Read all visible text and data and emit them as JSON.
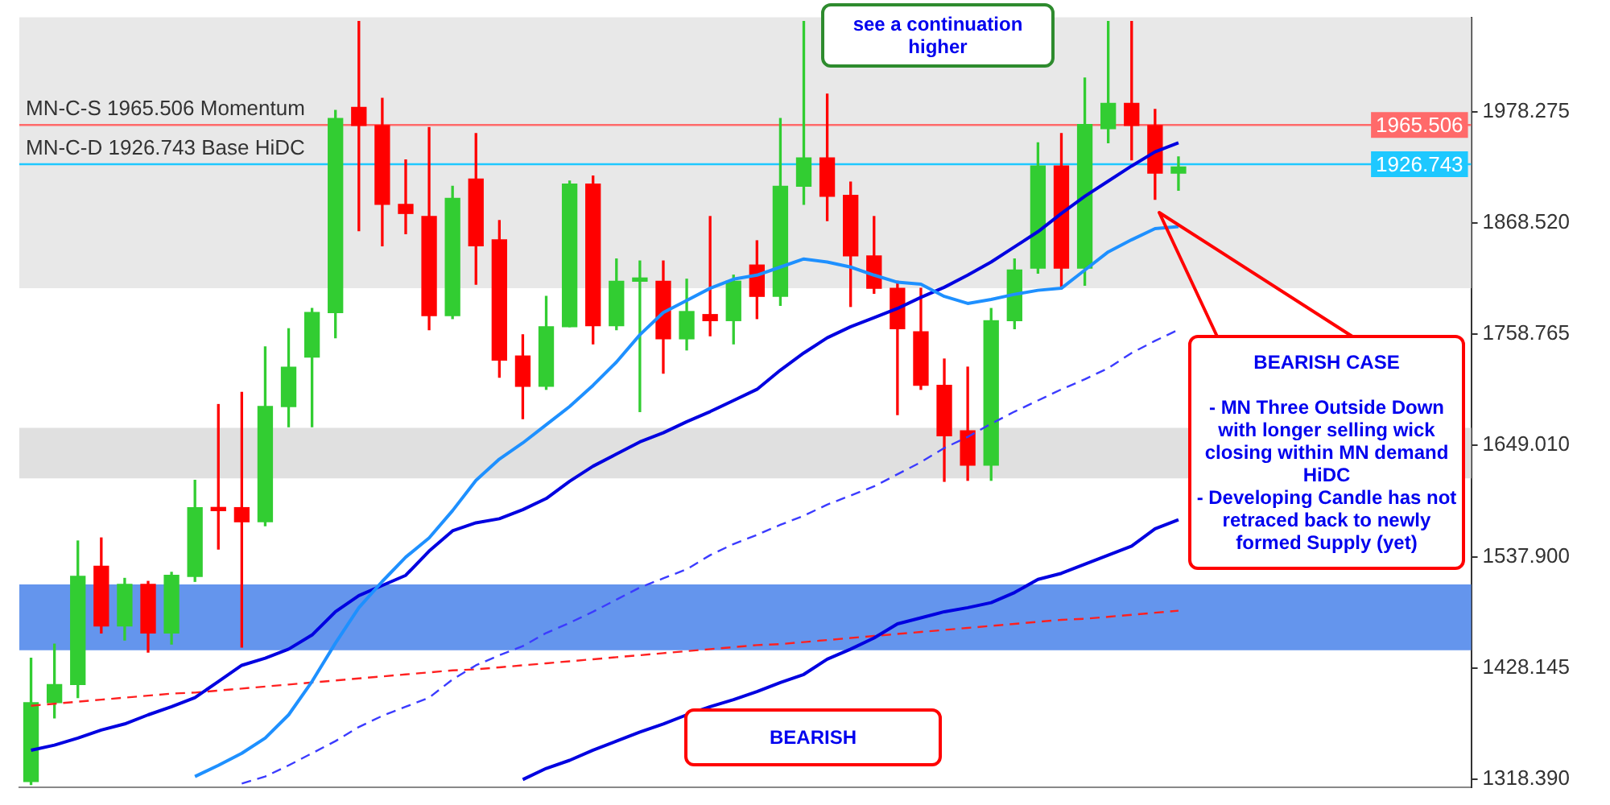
{
  "chart_data": {
    "type": "candlestick",
    "categories": [
      null,
      null,
      null,
      null,
      null,
      null,
      null,
      null,
      null,
      null,
      null,
      null,
      null,
      null,
      null,
      null,
      null,
      null,
      null,
      null,
      null,
      null,
      null,
      null,
      null,
      null,
      null,
      null,
      null,
      null,
      null,
      null,
      null,
      null,
      null,
      null,
      null,
      null,
      null,
      null,
      null,
      null,
      null,
      null,
      null,
      null,
      null,
      null,
      null,
      null,
      null,
      null,
      null,
      null,
      null,
      null,
      null,
      null,
      null,
      null,
      null,
      null
    ],
    "ohlc": [
      [
        1316,
        1438,
        1313,
        1394
      ],
      [
        1394,
        1452,
        1379,
        1412
      ],
      [
        1412,
        1554,
        1399,
        1519
      ],
      [
        1529,
        1557,
        1463,
        1470
      ],
      [
        1470,
        1517,
        1456,
        1511
      ],
      [
        1511,
        1514,
        1444,
        1463
      ],
      [
        1463,
        1523,
        1452,
        1520
      ],
      [
        1519,
        1614,
        1514,
        1587
      ],
      [
        1587,
        1689,
        1546,
        1584
      ],
      [
        1587,
        1701,
        1449,
        1573
      ],
      [
        1573,
        1746,
        1569,
        1687
      ],
      [
        1687,
        1764,
        1667,
        1726
      ],
      [
        1736,
        1784,
        1667,
        1780
      ],
      [
        1780,
        1980,
        1755,
        1972
      ],
      [
        1983,
        2068,
        1861,
        1965
      ],
      [
        1965,
        1992,
        1846,
        1887
      ],
      [
        1887,
        1931,
        1858,
        1878
      ],
      [
        1875,
        1963,
        1763,
        1777
      ],
      [
        1777,
        1905,
        1774,
        1893
      ],
      [
        1912,
        1957,
        1808,
        1846
      ],
      [
        1852,
        1871,
        1716,
        1733
      ],
      [
        1737,
        1758,
        1675,
        1707
      ],
      [
        1707,
        1796,
        1704,
        1766
      ],
      [
        1766,
        1910,
        1766,
        1907
      ],
      [
        1907,
        1915,
        1749,
        1767
      ],
      [
        1767,
        1833,
        1763,
        1811
      ],
      [
        1811,
        1831,
        1682,
        1812
      ],
      [
        1811,
        1831,
        1720,
        1754
      ],
      [
        1754,
        1813,
        1743,
        1781
      ],
      [
        1778,
        1875,
        1757,
        1772
      ],
      [
        1772,
        1817,
        1749,
        1811
      ],
      [
        1827,
        1851,
        1774,
        1796
      ],
      [
        1796,
        1972,
        1787,
        1905
      ],
      [
        1905,
        2068,
        1887,
        1933
      ],
      [
        1933,
        1996,
        1871,
        1895
      ],
      [
        1896,
        1909,
        1786,
        1836
      ],
      [
        1836,
        1875,
        1799,
        1804
      ],
      [
        1804,
        1811,
        1679,
        1764
      ],
      [
        1761,
        1804,
        1704,
        1708
      ],
      [
        1708,
        1734,
        1613,
        1658
      ],
      [
        1663,
        1726,
        1614,
        1629
      ],
      [
        1629,
        1784,
        1614,
        1772
      ],
      [
        1772,
        1833,
        1764,
        1822
      ],
      [
        1824,
        1948,
        1819,
        1925
      ],
      [
        1925,
        1957,
        1804,
        1824
      ],
      [
        1824,
        2012,
        1807,
        1966
      ],
      [
        1962,
        2068,
        1948,
        1987
      ],
      [
        1987,
        2068,
        1931,
        1965
      ],
      [
        1965,
        1981,
        1892,
        1918
      ],
      [
        1918,
        1934,
        1901,
        1924
      ],
      null,
      null,
      null,
      null,
      null,
      null,
      null,
      null,
      null,
      null,
      null,
      null
    ],
    "colors": [
      "#32cd32",
      "#32cd32",
      "#32cd32",
      "#ff0000",
      "#32cd32",
      "#ff0000",
      "#32cd32",
      "#32cd32",
      "#ff0000",
      "#ff0000",
      "#32cd32",
      "#32cd32",
      "#32cd32",
      "#32cd32",
      "#ff0000",
      "#ff0000",
      "#ff0000",
      "#ff0000",
      "#32cd32",
      "#ff0000",
      "#ff0000",
      "#ff0000",
      "#32cd32",
      "#32cd32",
      "#ff0000",
      "#32cd32",
      "#32cd32",
      "#ff0000",
      "#32cd32",
      "#ff0000",
      "#32cd32",
      "#ff0000",
      "#32cd32",
      "#32cd32",
      "#ff0000",
      "#ff0000",
      "#ff0000",
      "#ff0000",
      "#ff0000",
      "#ff0000",
      "#ff0000",
      "#32cd32",
      "#32cd32",
      "#32cd32",
      "#ff0000",
      "#32cd32",
      "#32cd32",
      "#ff0000",
      "#ff0000",
      "#32cd32",
      null,
      null,
      null,
      null,
      null,
      null,
      null,
      null,
      null,
      null,
      null,
      null
    ],
    "series": [
      {
        "type": "line",
        "color": "#1e90ff",
        "line_style": "solid",
        "values": [
          null,
          null,
          null,
          null,
          null,
          null,
          null,
          1321,
          1332,
          1344,
          1359,
          1382,
          1415,
          1453,
          1488,
          1514,
          1538,
          1557,
          1584,
          1614,
          1635,
          1651,
          1669,
          1687,
          1708,
          1731,
          1758,
          1780,
          1792,
          1804,
          1813,
          1817,
          1825,
          1833,
          1830,
          1825,
          1817,
          1810,
          1808,
          1796,
          1789,
          1793,
          1798,
          1802,
          1804,
          1822,
          1840,
          1852,
          1863,
          1865,
          null,
          null,
          null,
          null,
          null,
          null,
          null,
          null,
          null,
          null,
          null,
          null
        ]
      },
      {
        "type": "line",
        "color": "#0000e0",
        "line_style": "solid",
        "values": [
          1347,
          1352,
          1359,
          1367,
          1373,
          1382,
          1390,
          1399,
          1415,
          1431,
          1438,
          1447,
          1461,
          1484,
          1500,
          1510,
          1520,
          1544,
          1564,
          1572,
          1576,
          1585,
          1596,
          1613,
          1628,
          1640,
          1652,
          1661,
          1672,
          1682,
          1693,
          1704,
          1723,
          1740,
          1755,
          1766,
          1775,
          1784,
          1795,
          1805,
          1817,
          1830,
          1845,
          1860,
          1878,
          1895,
          1910,
          1925,
          1939,
          1948,
          null,
          null,
          null,
          null,
          null,
          null,
          null,
          null,
          null,
          null,
          null,
          null
        ]
      },
      {
        "type": "line",
        "color": "#0000e0",
        "line_style": "solid",
        "values": [
          null,
          null,
          null,
          null,
          null,
          null,
          null,
          null,
          null,
          null,
          null,
          null,
          null,
          null,
          null,
          null,
          null,
          null,
          null,
          null,
          null,
          1318,
          1329,
          1337,
          1347,
          1356,
          1365,
          1373,
          1382,
          1390,
          1397,
          1405,
          1414,
          1422,
          1437,
          1447,
          1458,
          1472,
          1478,
          1484,
          1488,
          1493,
          1503,
          1516,
          1522,
          1531,
          1540,
          1549,
          1566,
          1575,
          null,
          null,
          null,
          null,
          null,
          null,
          null,
          null,
          null,
          null,
          null,
          null
        ]
      },
      {
        "type": "line",
        "color": "#3b3bff",
        "line_style": "dashed",
        "values": [
          null,
          null,
          null,
          null,
          null,
          null,
          null,
          null,
          null,
          1314,
          1321,
          1332,
          1344,
          1356,
          1370,
          1381,
          1390,
          1399,
          1417,
          1431,
          1441,
          1450,
          1463,
          1473,
          1484,
          1496,
          1508,
          1517,
          1526,
          1540,
          1551,
          1560,
          1570,
          1579,
          1590,
          1599,
          1608,
          1620,
          1632,
          1646,
          1657,
          1670,
          1682,
          1693,
          1704,
          1714,
          1725,
          1740,
          1752,
          1763,
          null,
          null,
          null,
          null,
          null,
          null,
          null,
          null,
          null,
          null,
          null,
          null
        ]
      },
      {
        "type": "line",
        "color": "#ff2020",
        "line_style": "dashed",
        "values": [
          1391,
          1393,
          1395,
          1397,
          1399,
          1401,
          1403,
          1404,
          1406,
          1408,
          1410,
          1412,
          1414,
          1416,
          1418,
          1420,
          1422,
          1424,
          1426,
          1427,
          1429,
          1431,
          1433,
          1435,
          1437,
          1439,
          1441,
          1443,
          1445,
          1447,
          1449,
          1451,
          1452,
          1454,
          1456,
          1458,
          1460,
          1462,
          1464,
          1466,
          1468,
          1470,
          1472,
          1474,
          1476,
          1477,
          1479,
          1481,
          1483,
          1485,
          null,
          null,
          null,
          null,
          null,
          null,
          null,
          null,
          null,
          null,
          null,
          null
        ]
      }
    ],
    "ylim": [
      1310,
      2072
    ],
    "yticks": [
      {
        "value": 1318.39,
        "label": "1318.390"
      },
      1428.145,
      {
        "value": 1537.9,
        "label": "1537.900"
      },
      {
        "value": 1649.01,
        "label": "1649.010"
      },
      1758.765,
      {
        "value": 1868.52,
        "label": "1868.520"
      },
      1978.275
    ],
    "ref_lines": [
      {
        "axis": "y",
        "value": 1965.506,
        "label": "MN-C-S 1965.506 Momentum",
        "color": "#ff6a6a"
      },
      {
        "axis": "y",
        "value": 1926.743,
        "label": "MN-C-D 1926.743 Base HiDC",
        "color": "#1ec8ff"
      }
    ],
    "bands": [
      {
        "axis": "y",
        "from": 1446,
        "to": 1511,
        "color": "#6495ed"
      },
      {
        "axis": "y",
        "from": 1616,
        "to": 1666,
        "color": "#e0e0e0"
      },
      {
        "axis": "y",
        "from": 1804,
        "to": 2072,
        "color": "#e8e8e8"
      }
    ],
    "annotations": [
      "see a continuation\nhigher",
      "BEARISH CASE\n\n- MN Three Outside Down\nwith longer selling wick\nclosing within MN demand\nHiDC\n- Developing Candle has not\nretraced back to newly\nformed Supply (yet)",
      "BEARISH",
      "1965.506",
      "1926.743"
    ],
    "grid": false,
    "legend": false,
    "marker": "none",
    "tick_labels": "y"
  }
}
